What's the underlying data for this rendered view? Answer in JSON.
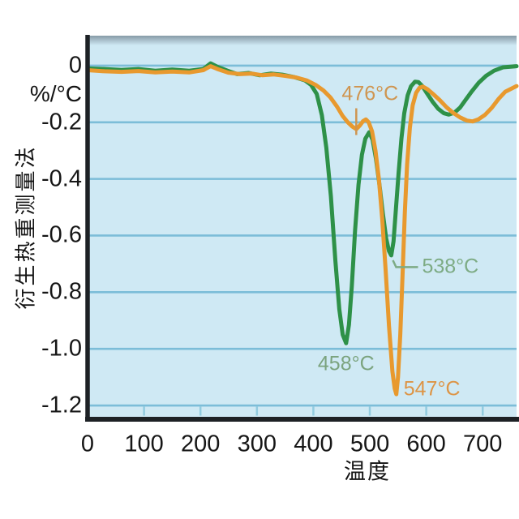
{
  "figure": {
    "background": "#ffffff",
    "plot_background": "#cfe9f4",
    "gridline_color": "#7cbdd8",
    "tick_mark_color": "#92cbe0",
    "axis_line_color": "#1d2125",
    "top_shadow_color": "#5f707d"
  },
  "chart_data": {
    "type": "line",
    "title": "",
    "xlabel": "温度",
    "ylabel": "衍生热重测量法",
    "y_unit": "%/°C",
    "xlim": [
      0,
      760
    ],
    "ylim": [
      -1.24,
      0.1
    ],
    "grid": true,
    "legend": "none",
    "x_ticks": [
      0,
      100,
      200,
      300,
      400,
      500,
      600,
      700
    ],
    "y_ticks": {
      "labels": [
        "0",
        "-0.2",
        "-0.4",
        "-0.6",
        "-0.8",
        "-1.0",
        "-1.2"
      ],
      "values": [
        0,
        -0.2,
        -0.4,
        -0.6,
        -0.8,
        -1.0,
        -1.2
      ]
    },
    "series": [
      {
        "name": "sample-green",
        "color": "#2e9148",
        "peaks": [
          {
            "T": 458,
            "v": -0.98
          },
          {
            "T": 538,
            "v": -0.67
          }
        ],
        "points": [
          [
            0,
            -0.01
          ],
          [
            30,
            -0.012
          ],
          [
            60,
            -0.015
          ],
          [
            90,
            -0.012
          ],
          [
            120,
            -0.018
          ],
          [
            150,
            -0.014
          ],
          [
            180,
            -0.018
          ],
          [
            205,
            -0.012
          ],
          [
            218,
            0.008
          ],
          [
            230,
            -0.004
          ],
          [
            248,
            -0.018
          ],
          [
            265,
            -0.03
          ],
          [
            285,
            -0.026
          ],
          [
            305,
            -0.034
          ],
          [
            325,
            -0.028
          ],
          [
            345,
            -0.032
          ],
          [
            365,
            -0.04
          ],
          [
            385,
            -0.052
          ],
          [
            396,
            -0.068
          ],
          [
            406,
            -0.1
          ],
          [
            415,
            -0.175
          ],
          [
            423,
            -0.29
          ],
          [
            431,
            -0.46
          ],
          [
            439,
            -0.69
          ],
          [
            446,
            -0.86
          ],
          [
            452,
            -0.95
          ],
          [
            458,
            -0.98
          ],
          [
            463,
            -0.915
          ],
          [
            468,
            -0.78
          ],
          [
            474,
            -0.58
          ],
          [
            480,
            -0.42
          ],
          [
            486,
            -0.315
          ],
          [
            492,
            -0.258
          ],
          [
            499,
            -0.235
          ],
          [
            505,
            -0.262
          ],
          [
            511,
            -0.33
          ],
          [
            517,
            -0.42
          ],
          [
            523,
            -0.52
          ],
          [
            529,
            -0.61
          ],
          [
            534,
            -0.655
          ],
          [
            538,
            -0.67
          ],
          [
            542,
            -0.62
          ],
          [
            546,
            -0.515
          ],
          [
            551,
            -0.38
          ],
          [
            556,
            -0.258
          ],
          [
            561,
            -0.168
          ],
          [
            567,
            -0.105
          ],
          [
            573,
            -0.073
          ],
          [
            580,
            -0.057
          ],
          [
            586,
            -0.058
          ],
          [
            593,
            -0.072
          ],
          [
            601,
            -0.097
          ],
          [
            611,
            -0.127
          ],
          [
            621,
            -0.152
          ],
          [
            631,
            -0.168
          ],
          [
            640,
            -0.173
          ],
          [
            650,
            -0.166
          ],
          [
            660,
            -0.148
          ],
          [
            670,
            -0.12
          ],
          [
            681,
            -0.09
          ],
          [
            693,
            -0.06
          ],
          [
            706,
            -0.036
          ],
          [
            720,
            -0.018
          ],
          [
            736,
            -0.006
          ],
          [
            760,
            -0.002
          ]
        ]
      },
      {
        "name": "sample-orange",
        "color": "#e8992e",
        "peaks": [
          {
            "T": 476,
            "v": -0.22
          },
          {
            "T": 547,
            "v": -1.16
          }
        ],
        "points": [
          [
            0,
            -0.016
          ],
          [
            30,
            -0.02
          ],
          [
            60,
            -0.022
          ],
          [
            90,
            -0.019
          ],
          [
            120,
            -0.024
          ],
          [
            150,
            -0.021
          ],
          [
            180,
            -0.024
          ],
          [
            205,
            -0.016
          ],
          [
            218,
            -0.002
          ],
          [
            230,
            -0.012
          ],
          [
            250,
            -0.025
          ],
          [
            270,
            -0.03
          ],
          [
            290,
            -0.028
          ],
          [
            310,
            -0.034
          ],
          [
            330,
            -0.031
          ],
          [
            350,
            -0.036
          ],
          [
            370,
            -0.042
          ],
          [
            388,
            -0.052
          ],
          [
            404,
            -0.068
          ],
          [
            418,
            -0.088
          ],
          [
            430,
            -0.112
          ],
          [
            442,
            -0.145
          ],
          [
            452,
            -0.178
          ],
          [
            461,
            -0.2
          ],
          [
            469,
            -0.215
          ],
          [
            476,
            -0.224
          ],
          [
            482,
            -0.212
          ],
          [
            488,
            -0.196
          ],
          [
            493,
            -0.19
          ],
          [
            498,
            -0.2
          ],
          [
            504,
            -0.232
          ],
          [
            510,
            -0.3
          ],
          [
            516,
            -0.4
          ],
          [
            522,
            -0.54
          ],
          [
            528,
            -0.72
          ],
          [
            534,
            -0.92
          ],
          [
            540,
            -1.08
          ],
          [
            544,
            -1.14
          ],
          [
            547,
            -1.16
          ],
          [
            550,
            -1.1
          ],
          [
            554,
            -0.95
          ],
          [
            558,
            -0.74
          ],
          [
            562,
            -0.52
          ],
          [
            566,
            -0.35
          ],
          [
            571,
            -0.22
          ],
          [
            576,
            -0.14
          ],
          [
            582,
            -0.096
          ],
          [
            588,
            -0.078
          ],
          [
            594,
            -0.074
          ],
          [
            602,
            -0.083
          ],
          [
            612,
            -0.1
          ],
          [
            624,
            -0.122
          ],
          [
            636,
            -0.147
          ],
          [
            648,
            -0.167
          ],
          [
            660,
            -0.183
          ],
          [
            672,
            -0.194
          ],
          [
            682,
            -0.197
          ],
          [
            692,
            -0.19
          ],
          [
            704,
            -0.174
          ],
          [
            716,
            -0.149
          ],
          [
            728,
            -0.118
          ],
          [
            740,
            -0.092
          ],
          [
            760,
            -0.072
          ]
        ]
      }
    ],
    "annotations": [
      {
        "id": "a476",
        "text": "476°C",
        "series": "sample-orange",
        "color": "#cf9550",
        "target": {
          "T": 476,
          "v": -0.225
        },
        "placement": "arrow-above"
      },
      {
        "id": "a458",
        "text": "458°C",
        "series": "sample-green",
        "color": "#7ba37e",
        "target": {
          "T": 458,
          "v": -0.98
        },
        "placement": "below"
      },
      {
        "id": "a538",
        "text": "538°C",
        "series": "sample-green",
        "color": "#7dab84",
        "target": {
          "T": 538,
          "v": -0.67
        },
        "placement": "elbow-right"
      },
      {
        "id": "a547",
        "text": "547°C",
        "series": "sample-orange",
        "color": "#dd9445",
        "target": {
          "T": 547,
          "v": -1.16
        },
        "placement": "right-of-tip"
      }
    ]
  }
}
